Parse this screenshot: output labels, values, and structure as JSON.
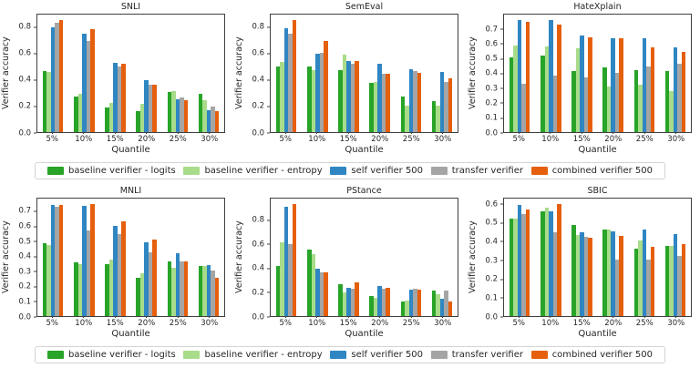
{
  "figure": {
    "ylabel": "Verifier accuracy",
    "xlabel": "Quantile",
    "background": "#ffffff",
    "spine_color": "#404040"
  },
  "legend": {
    "items": [
      {
        "label": "baseline verifier - logits",
        "color": "#28a428"
      },
      {
        "label": "baseline verifier - entropy",
        "color": "#a8dc8a"
      },
      {
        "label": "self verifier 500",
        "color": "#2f86c2"
      },
      {
        "label": "transfer verifier",
        "color": "#a5a5a5"
      },
      {
        "label": "combined verifier 500",
        "color": "#e55f0d"
      }
    ]
  },
  "chart_data": [
    {
      "type": "bar",
      "title": "SNLI",
      "xlabel": "Quantile",
      "ylabel": "Verifier accuracy",
      "categories": [
        "5%",
        "10%",
        "15%",
        "20%",
        "25%",
        "30%"
      ],
      "yticks": [
        0.0,
        0.2,
        0.4,
        0.6,
        0.8
      ],
      "ylim": [
        0,
        0.9
      ],
      "grid": false,
      "series": [
        {
          "name": "baseline verifier - logits",
          "values": [
            0.47,
            0.27,
            0.185,
            0.16,
            0.31,
            0.29
          ]
        },
        {
          "name": "baseline verifier - entropy",
          "values": [
            0.46,
            0.29,
            0.22,
            0.215,
            0.315,
            0.245
          ]
        },
        {
          "name": "self verifier 500",
          "values": [
            0.8,
            0.755,
            0.53,
            0.4,
            0.25,
            0.165
          ]
        },
        {
          "name": "transfer verifier",
          "values": [
            0.84,
            0.7,
            0.5,
            0.365,
            0.265,
            0.195
          ]
        },
        {
          "name": "combined verifier 500",
          "values": [
            0.855,
            0.79,
            0.52,
            0.365,
            0.245,
            0.16
          ]
        }
      ]
    },
    {
      "type": "bar",
      "title": "SemEval",
      "xlabel": "Quantile",
      "ylabel": "Verifier accuracy",
      "categories": [
        "5%",
        "10%",
        "15%",
        "20%",
        "25%",
        "30%"
      ],
      "yticks": [
        0.0,
        0.2,
        0.4,
        0.6,
        0.8
      ],
      "ylim": [
        0,
        0.9
      ],
      "grid": false,
      "series": [
        {
          "name": "baseline verifier - logits",
          "values": [
            0.505,
            0.505,
            0.475,
            0.375,
            0.27,
            0.24
          ]
        },
        {
          "name": "baseline verifier - entropy",
          "values": [
            0.54,
            0.475,
            0.59,
            0.385,
            0.2,
            0.205
          ]
        },
        {
          "name": "self verifier 500",
          "values": [
            0.795,
            0.6,
            0.545,
            0.525,
            0.48,
            0.46
          ]
        },
        {
          "name": "transfer verifier",
          "values": [
            0.755,
            0.61,
            0.52,
            0.445,
            0.465,
            0.385
          ]
        },
        {
          "name": "combined verifier 500",
          "values": [
            0.855,
            0.7,
            0.545,
            0.45,
            0.455,
            0.415
          ]
        }
      ]
    },
    {
      "type": "bar",
      "title": "HateXplain",
      "xlabel": "Quantile",
      "ylabel": "Verifier accuracy",
      "categories": [
        "5%",
        "10%",
        "15%",
        "20%",
        "25%",
        "30%"
      ],
      "yticks": [
        0.0,
        0.1,
        0.2,
        0.3,
        0.4,
        0.5,
        0.6,
        0.7
      ],
      "ylim": [
        0,
        0.805
      ],
      "grid": false,
      "series": [
        {
          "name": "baseline verifier - logits",
          "values": [
            0.51,
            0.525,
            0.42,
            0.445,
            0.425,
            0.42
          ]
        },
        {
          "name": "baseline verifier - entropy",
          "values": [
            0.59,
            0.585,
            0.575,
            0.315,
            0.325,
            0.28
          ]
        },
        {
          "name": "self verifier 500",
          "values": [
            0.765,
            0.765,
            0.66,
            0.64,
            0.64,
            0.58
          ]
        },
        {
          "name": "transfer verifier",
          "values": [
            0.33,
            0.385,
            0.375,
            0.405,
            0.45,
            0.47
          ]
        },
        {
          "name": "combined verifier 500",
          "values": [
            0.755,
            0.735,
            0.65,
            0.64,
            0.58,
            0.55
          ]
        }
      ]
    },
    {
      "type": "bar",
      "title": "MNLI",
      "xlabel": "Quantile",
      "ylabel": "Verifier accuracy",
      "categories": [
        "5%",
        "10%",
        "15%",
        "20%",
        "25%",
        "30%"
      ],
      "yticks": [
        0.0,
        0.1,
        0.2,
        0.3,
        0.4,
        0.5,
        0.6,
        0.7
      ],
      "ylim": [
        0,
        0.79
      ],
      "grid": false,
      "series": [
        {
          "name": "baseline verifier - logits",
          "values": [
            0.49,
            0.36,
            0.35,
            0.26,
            0.365,
            0.335
          ]
        },
        {
          "name": "baseline verifier - entropy",
          "values": [
            0.475,
            0.35,
            0.38,
            0.29,
            0.325,
            0.335
          ]
        },
        {
          "name": "self verifier 500",
          "values": [
            0.75,
            0.74,
            0.605,
            0.495,
            0.42,
            0.345
          ]
        },
        {
          "name": "transfer verifier",
          "values": [
            0.735,
            0.575,
            0.55,
            0.43,
            0.365,
            0.305
          ]
        },
        {
          "name": "combined verifier 500",
          "values": [
            0.75,
            0.755,
            0.635,
            0.515,
            0.365,
            0.26
          ]
        }
      ]
    },
    {
      "type": "bar",
      "title": "PStance",
      "xlabel": "Quantile",
      "ylabel": "Verifier accuracy",
      "categories": [
        "5%",
        "10%",
        "15%",
        "20%",
        "25%",
        "30%"
      ],
      "yticks": [
        0.0,
        0.2,
        0.4,
        0.6,
        0.8
      ],
      "ylim": [
        0,
        0.985
      ],
      "grid": false,
      "series": [
        {
          "name": "baseline verifier - logits",
          "values": [
            0.42,
            0.56,
            0.27,
            0.17,
            0.12,
            0.215
          ]
        },
        {
          "name": "baseline verifier - entropy",
          "values": [
            0.62,
            0.52,
            0.2,
            0.15,
            0.13,
            0.18
          ]
        },
        {
          "name": "self verifier 500",
          "values": [
            0.92,
            0.395,
            0.235,
            0.255,
            0.22,
            0.145
          ]
        },
        {
          "name": "transfer verifier",
          "values": [
            0.605,
            0.365,
            0.23,
            0.23,
            0.23,
            0.215
          ]
        },
        {
          "name": "combined verifier 500",
          "values": [
            0.94,
            0.37,
            0.28,
            0.24,
            0.22,
            0.125
          ]
        }
      ]
    },
    {
      "type": "bar",
      "title": "SBIC",
      "xlabel": "Quantile",
      "ylabel": "Verifier accuracy",
      "categories": [
        "5%",
        "10%",
        "15%",
        "20%",
        "25%",
        "30%"
      ],
      "yticks": [
        0.0,
        0.1,
        0.2,
        0.3,
        0.4,
        0.5,
        0.6
      ],
      "ylim": [
        0,
        0.635
      ],
      "grid": false,
      "series": [
        {
          "name": "baseline verifier - logits",
          "values": [
            0.525,
            0.565,
            0.49,
            0.47,
            0.365,
            0.38
          ]
        },
        {
          "name": "baseline verifier - entropy",
          "values": [
            0.525,
            0.585,
            0.44,
            0.47,
            0.41,
            0.38
          ]
        },
        {
          "name": "self verifier 500",
          "values": [
            0.6,
            0.565,
            0.455,
            0.46,
            0.47,
            0.445
          ]
        },
        {
          "name": "transfer verifier",
          "values": [
            0.55,
            0.455,
            0.43,
            0.305,
            0.305,
            0.325
          ]
        },
        {
          "name": "combined verifier 500",
          "values": [
            0.575,
            0.605,
            0.425,
            0.435,
            0.375,
            0.39
          ]
        }
      ]
    }
  ]
}
